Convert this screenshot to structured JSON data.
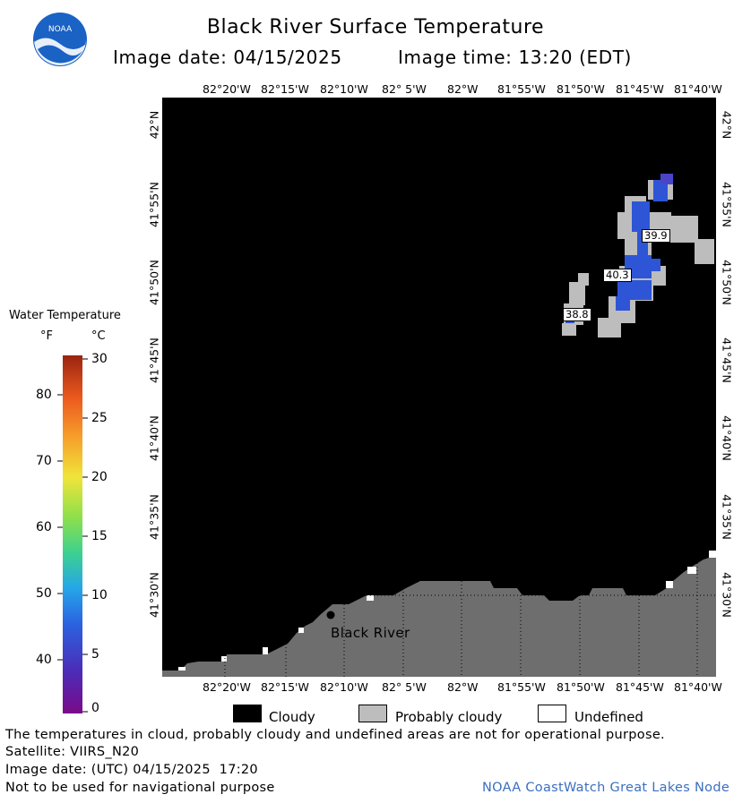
{
  "header": {
    "title": "Black River Surface Temperature",
    "image_date_label": "Image date: 04/15/2025",
    "image_time_label": "Image time: 13:20 (EDT)",
    "logo_text": "NOAA"
  },
  "map": {
    "lon_ticks": [
      "82°20'W",
      "82°15'W",
      "82°10'W",
      "82° 5'W",
      "82°W",
      "81°55'W",
      "81°50'W",
      "81°45'W",
      "81°40'W"
    ],
    "lat_ticks": [
      "42°N",
      "41°55'N",
      "41°50'N",
      "41°45'N",
      "41°40'N",
      "41°35'N",
      "41°30'N"
    ],
    "place_label": "Black River",
    "temp_labels": [
      "39.9",
      "40.3",
      "38.8"
    ]
  },
  "colorbar": {
    "title": "Water Temperature",
    "unit_f": "°F",
    "unit_c": "°C",
    "f_ticks": [
      "80",
      "70",
      "60",
      "50",
      "40"
    ],
    "c_ticks": [
      "30",
      "25",
      "20",
      "15",
      "10",
      "5",
      "0"
    ]
  },
  "legend": {
    "cloudy": "Cloudy",
    "probably_cloudy": "Probably cloudy",
    "undefined": "Undefined"
  },
  "footer": {
    "disclaimer": "The temperatures in cloud, probably cloudy and undefined areas are not for operational purpose.",
    "satellite": "Satellite: VIIRS_N20",
    "utc_date": "Image date: (UTC) 04/15/2025  17:20",
    "nav_warning": "Not to be used for navigational purpose",
    "credit": "NOAA CoastWatch Great Lakes Node"
  },
  "colors": {
    "cloudy": "#000000",
    "probably_cloudy": "#bdbdbd",
    "land": "#6e6e6e",
    "water_cold": "#2e55d6",
    "credit": "#3b6fc0"
  }
}
